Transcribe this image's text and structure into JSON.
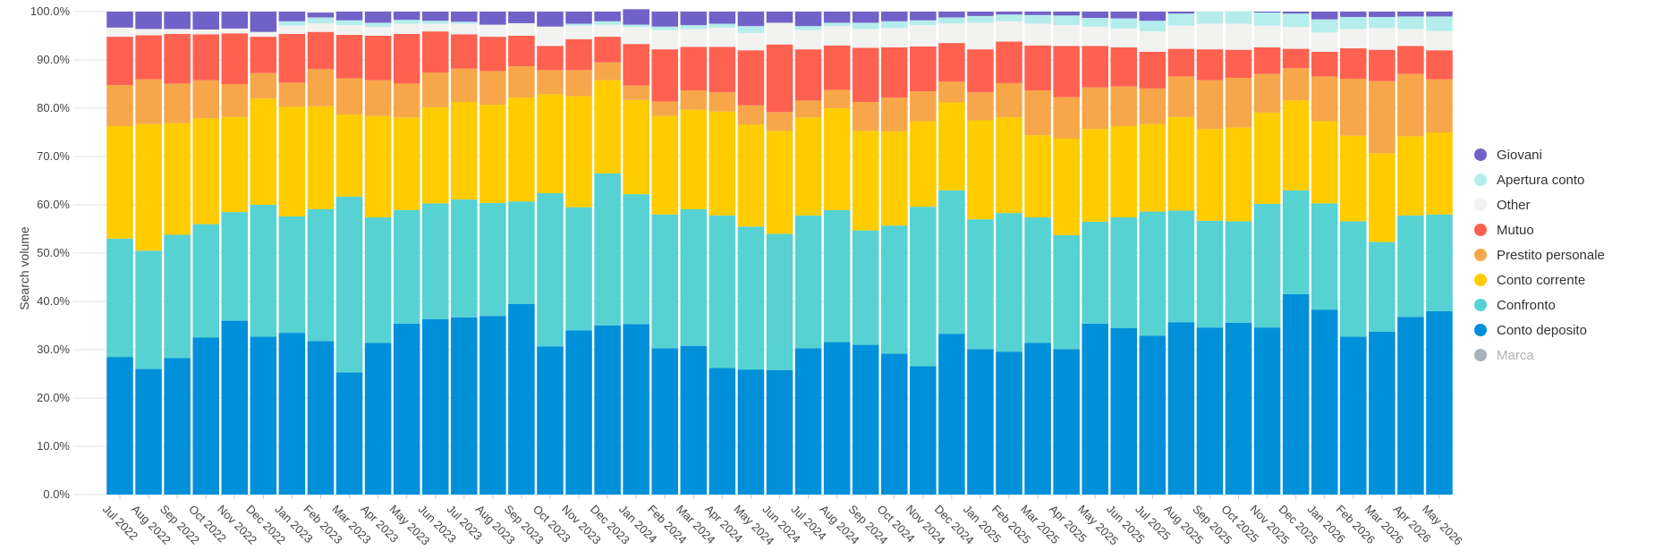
{
  "chart_data": {
    "type": "bar",
    "stacked": true,
    "normalized": true,
    "ylabel": "Search volume",
    "xlabel": "",
    "ylim": [
      0,
      100
    ],
    "yticks": [
      "0.0%",
      "10.0%",
      "20.0%",
      "30.0%",
      "40.0%",
      "50.0%",
      "60.0%",
      "70.0%",
      "80.0%",
      "90.0%",
      "100.0%"
    ],
    "grid": true,
    "legend_position": "right",
    "categories": [
      "Jul 2022",
      "Aug 2022",
      "Sep 2022",
      "Oct 2022",
      "Nov 2022",
      "Dec 2022",
      "Jan 2023",
      "Feb 2023",
      "Mar 2023",
      "Apr 2023",
      "May 2023",
      "Jun 2023",
      "Jul 2023",
      "Aug 2023",
      "Sep 2023",
      "Oct 2023",
      "Nov 2023",
      "Dec 2023",
      "Jan 2024",
      "Feb 2024",
      "Mar 2024",
      "Apr 2024",
      "May 2024",
      "Jun 2024",
      "Jul 2024",
      "Aug 2024",
      "Sep 2024",
      "Oct 2024",
      "Nov 2024",
      "Dec 2024",
      "Jan 2025",
      "Feb 2025",
      "Mar 2025",
      "Apr 2025",
      "May 2025",
      "Jun 2025",
      "Jul 2025",
      "Aug 2025",
      "Sep 2025",
      "Oct 2025",
      "Nov 2025",
      "Dec 2025",
      "Jan 2026",
      "Feb 2026",
      "Mar 2026",
      "Apr 2026",
      "May 2026"
    ],
    "series": [
      {
        "name": "Conto deposito",
        "color": "#0090DA",
        "values": [
          28.5,
          26,
          28.3,
          32.5,
          36,
          32.7,
          33.5,
          31.8,
          25.3,
          31.4,
          35.4,
          36.3,
          36.7,
          37,
          39.5,
          30.7,
          34,
          35,
          35.3,
          30.3,
          30.8,
          26.2,
          25.9,
          25.8,
          30.3,
          31.6,
          31,
          29.2,
          26.6,
          33.3,
          30.1,
          29.6,
          31.4,
          30.1,
          35.4,
          34.5,
          32.9,
          35.7,
          34.6,
          35.6,
          34.6,
          41.5,
          38.3,
          32.7,
          33.7,
          36.8,
          38
        ]
      },
      {
        "name": "Confronto",
        "color": "#56D2D2",
        "values": [
          24.5,
          24.5,
          25.5,
          23.5,
          22.5,
          27.3,
          24.1,
          27.3,
          36.4,
          26,
          23.5,
          24,
          24.4,
          23.4,
          21.2,
          31.7,
          25.5,
          31.5,
          26.9,
          27.7,
          28.3,
          31.6,
          29.6,
          28.2,
          27.5,
          27.3,
          23.7,
          26.5,
          33,
          29.7,
          26.9,
          28.7,
          26,
          23.6,
          21.1,
          22.9,
          25.7,
          23.1,
          22.1,
          21,
          25.6,
          21.5,
          22,
          23.9,
          18.6,
          21,
          20
        ]
      },
      {
        "name": "Conto corrente",
        "color": "#FFCC00",
        "values": [
          23.3,
          26.2,
          23.1,
          21.9,
          19.7,
          22,
          22.7,
          21.3,
          17,
          21,
          19.2,
          19.9,
          20.2,
          20.3,
          21.5,
          20.5,
          23,
          19.3,
          19.5,
          20.4,
          20.6,
          21.5,
          21.1,
          21.3,
          20.3,
          21.1,
          20.6,
          19.5,
          17.7,
          18.2,
          20.5,
          19.8,
          17,
          20,
          19.2,
          18.9,
          18.1,
          19.4,
          19,
          19.4,
          18.9,
          18.6,
          17,
          17.7,
          18.4,
          16.4,
          17
        ]
      },
      {
        "name": "Prestito personale",
        "color": "#F7A74A",
        "values": [
          8.5,
          9.3,
          8.2,
          7.9,
          6.8,
          5.3,
          5,
          7.7,
          7.5,
          7.4,
          7,
          7.2,
          6.9,
          7,
          6.5,
          5,
          5.4,
          3.7,
          3,
          3,
          4,
          4,
          4,
          3.9,
          3.5,
          3.8,
          6,
          7,
          6.2,
          4.3,
          5.8,
          7.1,
          9.3,
          8.6,
          8.6,
          8.2,
          7.4,
          8.4,
          10.1,
          10.3,
          8,
          6.7,
          9.3,
          11.8,
          14.9,
          12.9,
          11
        ]
      },
      {
        "name": "Mutuo",
        "color": "#FF6150",
        "values": [
          10,
          9.1,
          10.3,
          9.5,
          10.5,
          7.5,
          10.1,
          7.7,
          9,
          9.2,
          10.3,
          8.5,
          7.1,
          7.1,
          6.3,
          5,
          6.4,
          5.3,
          8.6,
          10.8,
          9,
          9.4,
          11.4,
          14,
          10.6,
          9.2,
          11.2,
          10.4,
          9.3,
          8,
          8.9,
          8.6,
          9.3,
          10.6,
          8.6,
          8.1,
          7.6,
          5.7,
          6.4,
          5.8,
          5.5,
          4,
          5.1,
          6.3,
          6.5,
          5.8,
          6
        ]
      },
      {
        "name": "Other",
        "color": "#F2F2F0",
        "values": [
          1.9,
          1.3,
          1,
          1,
          1,
          1,
          1.7,
          1.8,
          2,
          1.8,
          2.1,
          1.6,
          2.2,
          2.5,
          2.6,
          4,
          2.8,
          2.5,
          3.5,
          4,
          3.7,
          4,
          3.6,
          4.5,
          4,
          4,
          3.9,
          4,
          4.4,
          4.1,
          5.5,
          4.2,
          4.5,
          4.3,
          4,
          3.9,
          4.2,
          4.8,
          5.3,
          5.4,
          4.5,
          4.5,
          4,
          4,
          4.5,
          3.5,
          4
        ]
      },
      {
        "name": "Apertura conto",
        "color": "#B5EDEC",
        "values": [
          0,
          0,
          0,
          0,
          0,
          0,
          0.9,
          1.2,
          1,
          0.9,
          0.8,
          0.6,
          0.4,
          0,
          0,
          0,
          0.4,
          0.7,
          0.5,
          0.7,
          0.8,
          0.8,
          1.4,
          0,
          0.8,
          0.7,
          1.3,
          1.4,
          1,
          1.2,
          1.4,
          1.4,
          1.8,
          2,
          1.8,
          2.1,
          2.2,
          2.5,
          2.5,
          2.6,
          2.7,
          2.8,
          2.7,
          2.5,
          2.3,
          2.6,
          3
        ]
      },
      {
        "name": "Giovani",
        "color": "#7162C9",
        "values": [
          3.3,
          3.6,
          3.6,
          3.7,
          3.5,
          4.2,
          2,
          1,
          1.8,
          2.3,
          1.7,
          1.9,
          2.1,
          2.7,
          2.4,
          3.1,
          2.5,
          2,
          3.2,
          3.1,
          2.8,
          2.5,
          3,
          2.3,
          3,
          2.3,
          2.3,
          2,
          1.8,
          1.2,
          0.9,
          0.6,
          0.7,
          0.8,
          1.3,
          1.4,
          1.9,
          0.4,
          0,
          0,
          0.2,
          0.4,
          1.6,
          1.1,
          1.1,
          1,
          1
        ]
      },
      {
        "name": "Marca",
        "color": "#A8B0BA",
        "muted": true,
        "values": [
          0,
          0,
          0,
          0,
          0,
          0,
          0,
          0,
          0,
          0,
          0,
          0,
          0,
          0,
          0,
          0,
          0,
          0,
          0,
          0,
          0,
          0,
          0,
          0,
          0,
          0,
          0,
          0,
          0,
          0,
          0,
          0,
          0,
          0,
          0,
          0,
          0,
          0,
          0,
          0,
          0,
          0,
          0,
          0,
          0,
          0,
          0
        ]
      }
    ],
    "legend_order": [
      "Giovani",
      "Apertura conto",
      "Other",
      "Mutuo",
      "Prestito personale",
      "Conto corrente",
      "Confronto",
      "Conto deposito",
      "Marca"
    ]
  }
}
